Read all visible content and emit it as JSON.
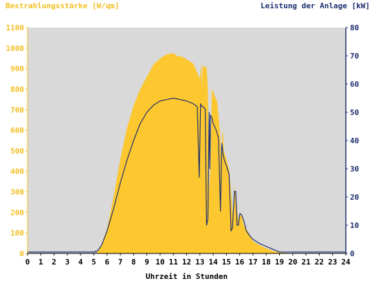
{
  "colors": {
    "irradiance": "#fdc72f",
    "irradiance_axis": "#f4c024",
    "power": "#1c2f6e",
    "plot_bg": "#d9d9d9",
    "page_bg": "#ffffff"
  },
  "chart_data": {
    "type": "area",
    "title": "",
    "ylabel_left": "Bestrahlungsstärke [W/qm]",
    "ylabel_right": "Leistung der Anlage [kW]",
    "xlabel": "Uhrzeit in Stunden",
    "xlim": [
      0,
      24
    ],
    "ylim_left": [
      0,
      1100
    ],
    "ylim_right": [
      0,
      80
    ],
    "grid": false,
    "x_ticks": [
      "0",
      "1",
      "2",
      "3",
      "4",
      "5",
      "6",
      "7",
      "8",
      "9",
      "10",
      "11",
      "12",
      "13",
      "14",
      "15",
      "16",
      "17",
      "18",
      "19",
      "20",
      "21",
      "22",
      "23",
      "24"
    ],
    "y_ticks_left": [
      "0",
      "100",
      "200",
      "300",
      "400",
      "500",
      "600",
      "700",
      "800",
      "900",
      "1000",
      "1100"
    ],
    "y_ticks_right": [
      "0",
      "10",
      "20",
      "30",
      "40",
      "50",
      "60",
      "70",
      "80"
    ],
    "series": [
      {
        "name": "Bestrahlungsstärke",
        "kind": "area",
        "axis": "left",
        "x": [
          0,
          5.2,
          5.5,
          6,
          6.5,
          7,
          7.5,
          8,
          8.5,
          9,
          9.5,
          10,
          10.5,
          11,
          11.3,
          11.6,
          12,
          12.5,
          12.8,
          13,
          13.1,
          13.15,
          13.2,
          13.3,
          13.5,
          13.6,
          13.7,
          13.8,
          13.9,
          14,
          14.1,
          14.3,
          14.5,
          14.6,
          14.7,
          14.75,
          14.8,
          14.9,
          15,
          15.2,
          15.4,
          15.5,
          15.6,
          15.7,
          15.8,
          15.9,
          16,
          16.1,
          16.2,
          16.3,
          16.5,
          16.8,
          17,
          17.5,
          18,
          18.5,
          19,
          19.5,
          20,
          24
        ],
        "y": [
          0,
          0,
          30,
          120,
          280,
          460,
          610,
          720,
          800,
          860,
          920,
          950,
          970,
          975,
          960,
          960,
          945,
          925,
          880,
          850,
          930,
          800,
          920,
          905,
          910,
          800,
          300,
          430,
          800,
          790,
          770,
          740,
          600,
          470,
          600,
          580,
          500,
          480,
          460,
          410,
          260,
          150,
          330,
          280,
          210,
          170,
          180,
          190,
          170,
          140,
          120,
          85,
          60,
          40,
          25,
          12,
          5,
          2,
          0,
          0
        ]
      },
      {
        "name": "Leistung der Anlage",
        "kind": "line",
        "axis": "right",
        "x": [
          0,
          5,
          5.3,
          5.6,
          6,
          6.5,
          7,
          7.5,
          8,
          8.5,
          9,
          9.5,
          10,
          10.5,
          11,
          11.5,
          12,
          12.5,
          12.8,
          12.95,
          13.05,
          13.15,
          13.25,
          13.4,
          13.5,
          13.6,
          13.7,
          13.75,
          13.8,
          13.9,
          14,
          14.2,
          14.4,
          14.55,
          14.65,
          14.75,
          14.85,
          15,
          15.2,
          15.35,
          15.45,
          15.6,
          15.7,
          15.8,
          15.9,
          16,
          16.1,
          16.2,
          16.35,
          16.5,
          16.8,
          17,
          17.5,
          18,
          18.5,
          19,
          19.5,
          20,
          20.5,
          21,
          24
        ],
        "y": [
          0.5,
          0.5,
          1,
          3,
          8,
          16,
          25,
          33,
          40,
          46,
          50,
          52.5,
          54,
          54.5,
          55,
          54.5,
          54,
          53,
          52,
          27,
          53,
          52,
          52,
          51,
          10,
          12,
          50,
          30,
          49,
          48,
          46,
          44,
          41,
          15,
          39,
          35,
          33,
          31,
          28,
          8,
          9,
          22,
          22,
          10,
          10,
          14,
          14,
          13,
          11,
          8,
          6,
          5,
          3.5,
          2.5,
          1.5,
          0.5,
          0.5,
          0.5,
          0.5,
          0.5,
          0.5
        ]
      }
    ]
  }
}
